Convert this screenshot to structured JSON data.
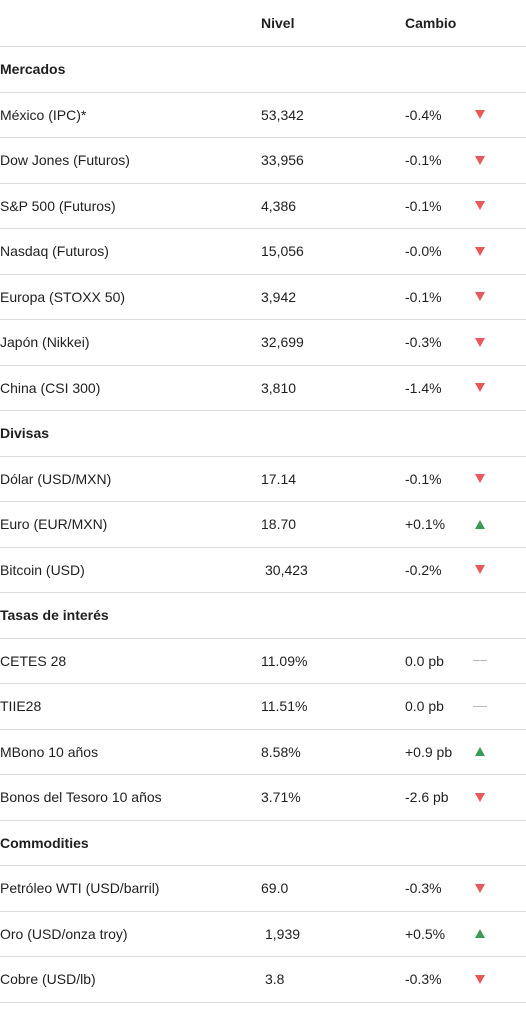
{
  "header": {
    "level": "Nivel",
    "change": "Cambio"
  },
  "colors": {
    "down": "#e8595a",
    "up": "#3c9a5b",
    "flat": "#b8b8b8",
    "divider": "#dcdcdc"
  },
  "sections": [
    {
      "title": "Mercados",
      "rows": [
        {
          "name": "México (IPC)*",
          "level": "53,342",
          "change": "-0.4%",
          "trend": "down-triangle-icon"
        },
        {
          "name": "Dow Jones (Futuros)",
          "level": "33,956",
          "change": "-0.1%",
          "trend": "down-triangle-icon"
        },
        {
          "name": "S&P 500 (Futuros)",
          "level": "4,386",
          "change": "-0.1%",
          "trend": "down-triangle-icon"
        },
        {
          "name": "Nasdaq (Futuros)",
          "level": "15,056",
          "change": "-0.0%",
          "trend": "down-triangle-icon"
        },
        {
          "name": "Europa (STOXX 50)",
          "level": "3,942",
          "change": "-0.1%",
          "trend": "down-triangle-icon"
        },
        {
          "name": "Japón (Nikkei)",
          "level": "32,699",
          "change": "-0.3%",
          "trend": "down-triangle-icon"
        },
        {
          "name": "China (CSI 300)",
          "level": "3,810",
          "change": "-1.4%",
          "trend": "down-triangle-icon"
        }
      ]
    },
    {
      "title": "Divisas",
      "rows": [
        {
          "name": "Dólar (USD/MXN)",
          "level": "17.14",
          "change": "-0.1%",
          "trend": "down-triangle-icon"
        },
        {
          "name": "Euro (EUR/MXN)",
          "level": "18.70",
          "change": "+0.1%",
          "trend": "up-triangle-icon"
        },
        {
          "name": "Bitcoin (USD)",
          "level": "30,423",
          "change": "-0.2%",
          "trend": "down-triangle-icon"
        }
      ]
    },
    {
      "title": "Tasas de interés",
      "rows": [
        {
          "name": "CETES 28",
          "level": "11.09%",
          "change": "0.0 pb",
          "trend": "flat-dash-icon"
        },
        {
          "name": "TIIE28",
          "level": "11.51%",
          "change": "0.0 pb",
          "trend": "flat-dash-icon"
        },
        {
          "name": "MBono 10 años",
          "level": "8.58%",
          "change": "+0.9 pb",
          "trend": "up-triangle-icon"
        },
        {
          "name": "Bonos del Tesoro 10 años",
          "level": "3.71%",
          "change": "-2.6 pb",
          "trend": "down-triangle-icon"
        }
      ]
    },
    {
      "title": "Commodities",
      "rows": [
        {
          "name": "Petróleo WTI (USD/barril)",
          "level": "69.0",
          "change": "-0.3%",
          "trend": "down-triangle-icon"
        },
        {
          "name": "Oro (USD/onza troy)",
          "level": "1,939",
          "change": "+0.5%",
          "trend": "up-triangle-icon"
        },
        {
          "name": "Cobre (USD/lb)",
          "level": "3.8",
          "change": "-0.3%",
          "trend": "down-triangle-icon"
        }
      ]
    }
  ]
}
